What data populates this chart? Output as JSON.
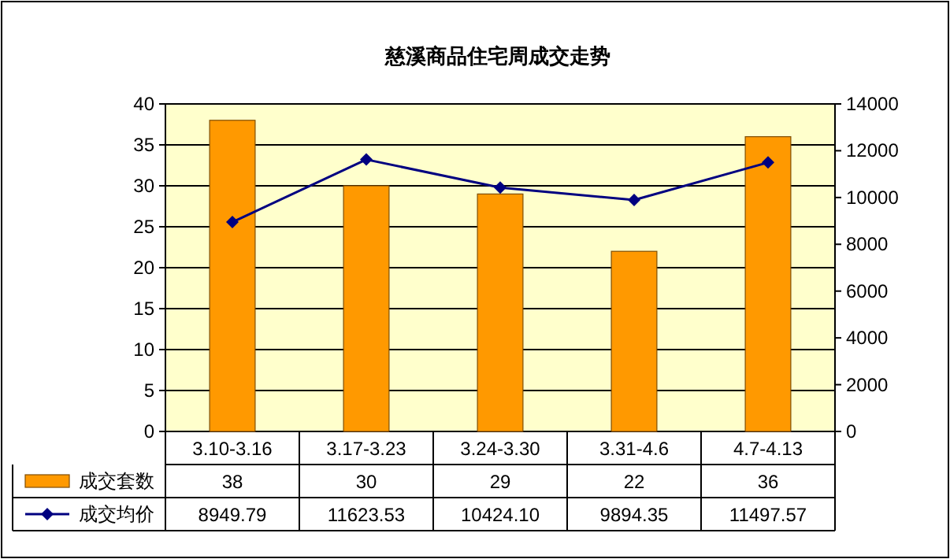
{
  "chart_data": {
    "type": "bar",
    "title": "慈溪商品住宅周成交走势",
    "categories": [
      "3.10-3.16",
      "3.17-3.23",
      "3.24-3.30",
      "3.31-4.6",
      "4.7-4.13"
    ],
    "series": [
      {
        "name": "成交套数",
        "color": "#ff9900",
        "values": [
          38,
          30,
          29,
          22,
          36
        ],
        "value_labels": [
          "38",
          "30",
          "29",
          "22",
          "36"
        ]
      },
      {
        "name": "成交均价",
        "type": "line",
        "axis": "y2",
        "color": "#000080",
        "marker": "diamond",
        "values": [
          8949.79,
          11623.53,
          10424.1,
          9894.35,
          11497.57
        ],
        "value_labels": [
          "8949.79",
          "11623.53",
          "10424.10",
          "9894.35",
          "11497.57"
        ]
      }
    ],
    "ylim": [
      0,
      40
    ],
    "yticks": [
      0,
      5,
      10,
      15,
      20,
      25,
      30,
      35,
      40
    ],
    "y2lim": [
      0,
      14000
    ],
    "y2ticks": [
      0,
      2000,
      4000,
      6000,
      8000,
      10000,
      12000,
      14000
    ],
    "grid": "y",
    "legend": "bottom"
  }
}
